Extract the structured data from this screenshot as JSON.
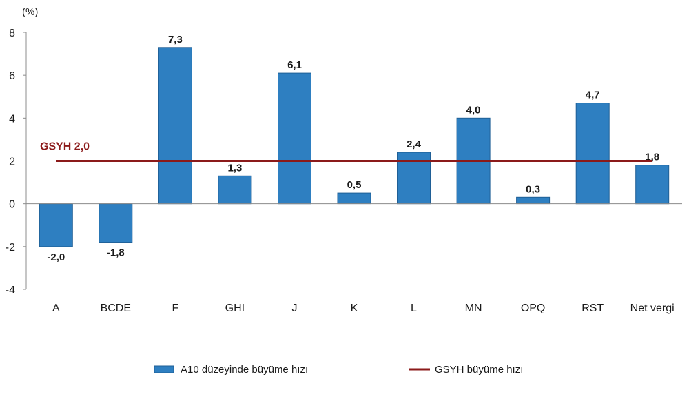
{
  "chart_data": {
    "type": "bar",
    "unit_label": "(%)",
    "categories": [
      "A",
      "BCDE",
      "F",
      "GHI",
      "J",
      "K",
      "L",
      "MN",
      "OPQ",
      "RST",
      "Net vergi"
    ],
    "series": [
      {
        "name": "A10 düzeyinde büyüme hızı",
        "values": [
          -2.0,
          -1.8,
          7.3,
          1.3,
          6.1,
          0.5,
          2.4,
          4.0,
          0.3,
          4.7,
          1.8
        ],
        "labels": [
          "-2,0",
          "-1,8",
          "7,3",
          "1,3",
          "6,1",
          "0,5",
          "2,4",
          "4,0",
          "0,3",
          "4,7",
          "1,8"
        ],
        "color": "#2e7fc1"
      }
    ],
    "reference_line": {
      "name": "GSYH büyüme hızı",
      "value": 2.0,
      "label": "GSYH 2,0",
      "color": "#8b1a1a"
    },
    "yticks": [
      "-4",
      "-2",
      "0",
      "2",
      "4",
      "6",
      "8"
    ],
    "ylim": [
      -4,
      8
    ],
    "grid": false,
    "legend_position": "bottom"
  }
}
